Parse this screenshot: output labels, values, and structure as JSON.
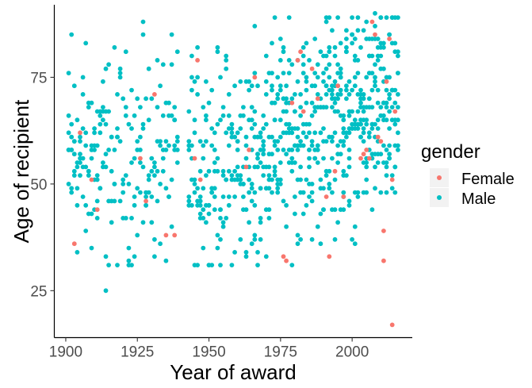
{
  "chart_data": {
    "type": "scatter",
    "xlabel": "Year of award",
    "ylabel": "Age of recipient",
    "xlim": [
      1896,
      2021
    ],
    "ylim": [
      14,
      92
    ],
    "x_ticks": [
      1900,
      1925,
      1950,
      1975,
      2000
    ],
    "y_ticks": [
      25,
      50,
      75
    ],
    "grid": false,
    "legend": {
      "title": "gender",
      "position": "right"
    },
    "series": [
      {
        "name": "Female",
        "color": "#F8766D",
        "points": [
          [
            1903,
            36
          ],
          [
            1905,
            62
          ],
          [
            1909,
            51
          ],
          [
            1911,
            44
          ],
          [
            1926,
            56
          ],
          [
            1928,
            46
          ],
          [
            1931,
            71
          ],
          [
            1935,
            38
          ],
          [
            1938,
            38
          ],
          [
            1945,
            56
          ],
          [
            1946,
            79
          ],
          [
            1947,
            51
          ],
          [
            1963,
            54
          ],
          [
            1964,
            58
          ],
          [
            1966,
            75
          ],
          [
            1976,
            33
          ],
          [
            1977,
            32
          ],
          [
            1979,
            69
          ],
          [
            1981,
            79
          ],
          [
            1982,
            81
          ],
          [
            1983,
            67
          ],
          [
            1986,
            77
          ],
          [
            1988,
            70
          ],
          [
            1991,
            47
          ],
          [
            1992,
            33
          ],
          [
            1994,
            53
          ],
          [
            1995,
            73
          ],
          [
            1997,
            47
          ],
          [
            2003,
            56
          ],
          [
            2004,
            57
          ],
          [
            2005,
            58
          ],
          [
            2006,
            56
          ],
          [
            2007,
            88
          ],
          [
            2008,
            85
          ],
          [
            2009,
            61
          ],
          [
            2010,
            60
          ],
          [
            2011,
            32
          ],
          [
            2011,
            39
          ],
          [
            2012,
            74
          ],
          [
            2013,
            84
          ],
          [
            2014,
            17
          ],
          [
            2014,
            51
          ],
          [
            2015,
            67
          ]
        ]
      },
      {
        "name": "Male",
        "color": "#00BFC4",
        "points": []
      }
    ]
  }
}
